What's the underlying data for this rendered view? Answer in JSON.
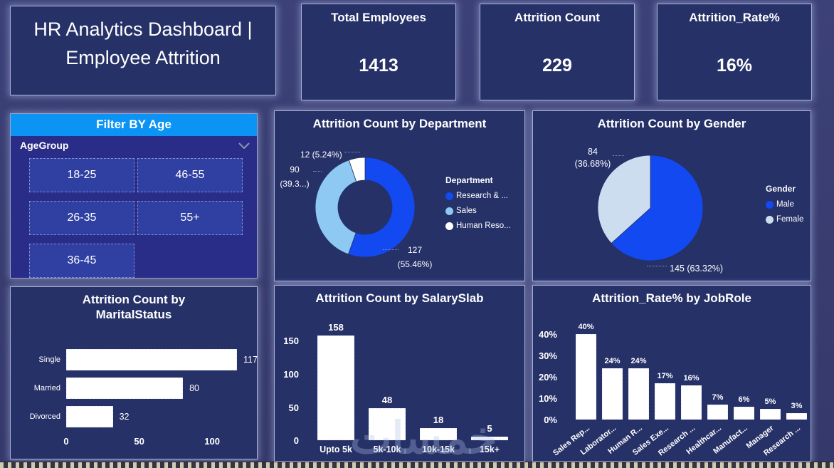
{
  "header": {
    "title": "HR Analytics Dashboard | Employee Attrition"
  },
  "kpis": [
    {
      "label": "Total Employees",
      "value": "1413"
    },
    {
      "label": "Attrition Count",
      "value": "229"
    },
    {
      "label": "Attrition_Rate%",
      "value": "16%"
    }
  ],
  "slicer": {
    "header": "Filter BY Age",
    "field_label": "AgeGroup",
    "options": [
      "18-25",
      "46-55",
      "26-35",
      "55+",
      "36-45"
    ]
  },
  "colors": {
    "accent_blue": "#0B94F4",
    "series_blue": "#1249F0",
    "series_light_blue": "#8DC9F2",
    "series_pale": "#CBDDEF",
    "bar_white": "#FFFFFF",
    "panel_bg": "#263168",
    "slicer_bg": "#2A2D87"
  },
  "watermark": {
    "text": "خمسات"
  },
  "chart_data": [
    {
      "id": "department",
      "type": "pie",
      "subtype": "donut",
      "title": "Attrition Count by Department",
      "legend_title": "Department",
      "legend_position": "right",
      "categories": [
        "Research & ...",
        "Sales",
        "Human Reso..."
      ],
      "values": [
        127,
        90,
        12
      ],
      "colors": [
        "#1249F0",
        "#8DC9F2",
        "#FFFFFF"
      ],
      "data_labels": {
        "rd_value": "127",
        "rd_pct": "(55.46%)",
        "sales_value": "90",
        "sales_pct": "(39.3...)",
        "hr_label": "12 (5.24%)"
      }
    },
    {
      "id": "gender",
      "type": "pie",
      "subtype": "pie",
      "title": "Attrition Count by Gender",
      "legend_title": "Gender",
      "legend_position": "right",
      "categories": [
        "Male",
        "Female"
      ],
      "values": [
        145,
        84
      ],
      "colors": [
        "#1249F0",
        "#CBDDEF"
      ],
      "data_labels": {
        "female_value": "84",
        "female_pct": "(36.68%)",
        "male_label": "145 (63.32%)"
      }
    },
    {
      "id": "marital",
      "type": "bar",
      "orientation": "horizontal",
      "title": "Attrition Count by MaritalStatus",
      "categories": [
        "Single",
        "Married",
        "Divorced"
      ],
      "values": [
        117,
        80,
        32
      ],
      "bar_color": "#FFFFFF",
      "x_ticks": [
        {
          "label": "0",
          "value": 0
        },
        {
          "label": "50",
          "value": 50
        },
        {
          "label": "100",
          "value": 100
        }
      ],
      "xlim": [
        0,
        117
      ]
    },
    {
      "id": "salary",
      "type": "bar",
      "orientation": "vertical",
      "title": "Attrition Count by SalarySlab",
      "categories": [
        "Upto 5k",
        "5k-10k",
        "10k-15k",
        "15k+"
      ],
      "values": [
        158,
        48,
        18,
        5
      ],
      "value_labels": [
        "158",
        "48",
        "18",
        "5"
      ],
      "bar_color": "#FFFFFF",
      "y_ticks": [
        {
          "label": "0",
          "value": 0
        },
        {
          "label": "50",
          "value": 50
        },
        {
          "label": "100",
          "value": 100
        },
        {
          "label": "150",
          "value": 150
        }
      ],
      "y_max": 158
    },
    {
      "id": "jobrole",
      "type": "bar",
      "orientation": "vertical",
      "title": "Attrition_Rate% by JobRole",
      "categories": [
        "Sales Rep...",
        "Laborator...",
        "Human R...",
        "Sales Exe...",
        "Research ...",
        "Healthcar...",
        "Manufact...",
        "Manager",
        "Research ..."
      ],
      "values": [
        40,
        24,
        24,
        17,
        16,
        7,
        6,
        5,
        3
      ],
      "value_labels": [
        "40%",
        "24%",
        "24%",
        "17%",
        "16%",
        "7%",
        "6%",
        "5%",
        "3%"
      ],
      "bar_color": "#FFFFFF",
      "y_ticks": [
        {
          "label": "0%",
          "value": 0
        },
        {
          "label": "10%",
          "value": 10
        },
        {
          "label": "20%",
          "value": 20
        },
        {
          "label": "30%",
          "value": 30
        },
        {
          "label": "40%",
          "value": 40
        }
      ],
      "y_max": 40
    }
  ]
}
